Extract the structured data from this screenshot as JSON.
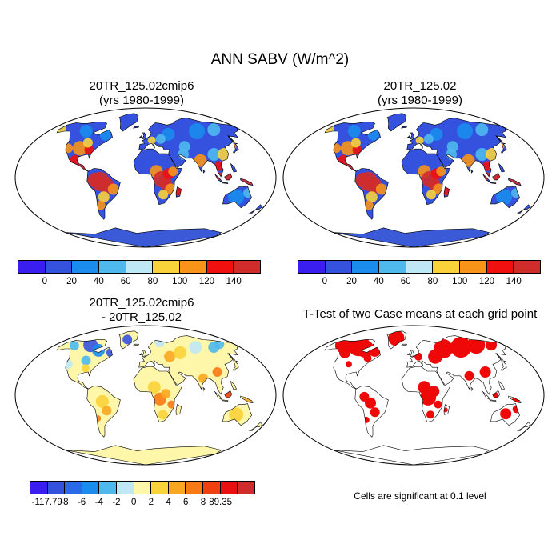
{
  "title": "ANN SABV (W/m^2)",
  "panels": [
    {
      "title_line1": "20TR_125.02cmip6",
      "title_line2": "(yrs 1980-1999)",
      "type": "field"
    },
    {
      "title_line1": "20TR_125.02",
      "title_line2": "(yrs 1980-1999)",
      "type": "field"
    },
    {
      "title_line1": "20TR_125.02cmip6",
      "title_line2": "- 20TR_125.02",
      "type": "difference"
    },
    {
      "title_line1": "T-Test of two Case means at each grid point",
      "type": "significance"
    }
  ],
  "colorbar_field": {
    "colors": [
      "#3a1ef0",
      "#3452de",
      "#1a8cee",
      "#4fb9ee",
      "#bfe8f4",
      "#f9d33a",
      "#f89418",
      "#f01010",
      "#d02c2c"
    ],
    "labels": [
      "0",
      "20",
      "40",
      "60",
      "80",
      "100",
      "120",
      "140"
    ]
  },
  "colorbar_diff": {
    "colors": [
      "#3a1ef0",
      "#3452de",
      "#2a6ae8",
      "#1a8cee",
      "#4fb9ee",
      "#bfe8f4",
      "#fef6a8",
      "#f9d33a",
      "#f8a820",
      "#f87a14",
      "#f04010",
      "#e81010",
      "#d02c2c"
    ],
    "labels": [
      "-117.79",
      "-8",
      "-6",
      "-4",
      "-2",
      "0",
      "2",
      "4",
      "6",
      "8",
      "89.35"
    ]
  },
  "significance_note": "Cells are significant at 0.1 level",
  "colors": {
    "ocean": "#ffffff",
    "significant": "#ee0808",
    "antarctica_field": "#3a5ad8",
    "antarctica_diff": "#fef6a8"
  }
}
